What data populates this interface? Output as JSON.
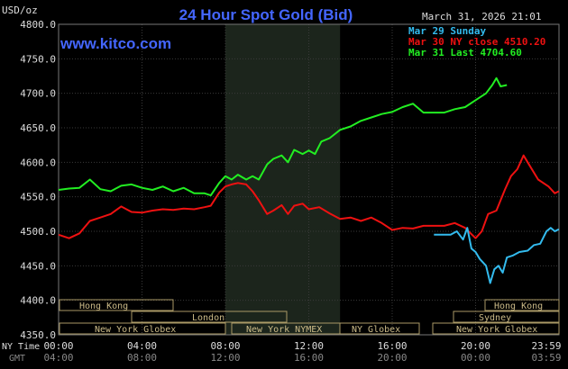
{
  "header": {
    "title": "24 Hour Spot Gold (Bid)",
    "units": "USD/oz",
    "datetime": "March 31, 2026 21:01",
    "website": "www.kitco.com"
  },
  "legend": [
    {
      "label": "Mar 29 Sunday",
      "color": "#33bbee"
    },
    {
      "label": "Mar 30 NY close 4510.20",
      "color": "#ee1111"
    },
    {
      "label": "Mar 31 Last 4704.60",
      "color": "#22ee22"
    }
  ],
  "time_rows": {
    "ny_label": "NY Time",
    "gmt_label": "GMT",
    "ny_ticks": [
      "00:00",
      "04:00",
      "08:00",
      "12:00",
      "16:00",
      "20:00",
      "23:59"
    ],
    "gmt_ticks": [
      "04:00",
      "08:00",
      "12:00",
      "16:00",
      "20:00",
      "00:00",
      "03:59"
    ]
  },
  "sessions": [
    {
      "label": "Hong Kong",
      "row": 0
    },
    {
      "label": "Hong Kong",
      "row": 0
    },
    {
      "label": "London",
      "row": 1
    },
    {
      "label": "Sydney",
      "row": 1
    },
    {
      "label": "New York Globex",
      "row": 2
    },
    {
      "label": "New York NYMEX",
      "row": 2
    },
    {
      "label": "NY Globex",
      "row": 2
    },
    {
      "label": "New York Globex",
      "row": 2
    }
  ],
  "chart_data": {
    "type": "line",
    "title": "24 Hour Spot Gold (Bid)",
    "ylabel": "USD/oz",
    "ylim": [
      4350,
      4800
    ],
    "yticks": [
      "4800.0",
      "4750.0",
      "4700.0",
      "4650.0",
      "4600.0",
      "4550.0",
      "4500.0",
      "4450.0",
      "4400.0",
      "4350.0"
    ],
    "xlim_hours": [
      0,
      24
    ],
    "shaded_hours": [
      8.0,
      13.5
    ],
    "grid": true,
    "legend_position": "top-right",
    "series": [
      {
        "name": "Mar 31 Last 4704.60",
        "color": "#22ee22",
        "points": [
          [
            0,
            4560
          ],
          [
            0.5,
            4562
          ],
          [
            1.0,
            4563
          ],
          [
            1.5,
            4575
          ],
          [
            2.0,
            4561
          ],
          [
            2.5,
            4558
          ],
          [
            3.0,
            4566
          ],
          [
            3.5,
            4568
          ],
          [
            4.0,
            4563
          ],
          [
            4.5,
            4560
          ],
          [
            5.0,
            4565
          ],
          [
            5.5,
            4558
          ],
          [
            6.0,
            4563
          ],
          [
            6.5,
            4555
          ],
          [
            7.0,
            4555
          ],
          [
            7.3,
            4552
          ],
          [
            7.7,
            4570
          ],
          [
            8.0,
            4580
          ],
          [
            8.3,
            4575
          ],
          [
            8.6,
            4582
          ],
          [
            9.0,
            4575
          ],
          [
            9.3,
            4580
          ],
          [
            9.6,
            4575
          ],
          [
            10.0,
            4597
          ],
          [
            10.3,
            4605
          ],
          [
            10.7,
            4610
          ],
          [
            11.0,
            4600
          ],
          [
            11.3,
            4618
          ],
          [
            11.7,
            4612
          ],
          [
            12.0,
            4617
          ],
          [
            12.3,
            4612
          ],
          [
            12.6,
            4630
          ],
          [
            13.0,
            4635
          ],
          [
            13.5,
            4647
          ],
          [
            14.0,
            4652
          ],
          [
            14.5,
            4660
          ],
          [
            15.0,
            4665
          ],
          [
            15.5,
            4670
          ],
          [
            16.0,
            4673
          ],
          [
            16.5,
            4680
          ],
          [
            17.0,
            4685
          ],
          [
            17.5,
            4672
          ],
          [
            18.0,
            4672
          ],
          [
            18.5,
            4672
          ],
          [
            19.0,
            4677
          ],
          [
            19.5,
            4680
          ],
          [
            20.0,
            4690
          ],
          [
            20.5,
            4700
          ],
          [
            20.8,
            4712
          ],
          [
            21.0,
            4722
          ],
          [
            21.2,
            4710
          ],
          [
            21.5,
            4712
          ]
        ]
      },
      {
        "name": "Mar 30 NY close 4510.20",
        "color": "#ee1111",
        "points": [
          [
            0,
            4495
          ],
          [
            0.5,
            4490
          ],
          [
            1.0,
            4497
          ],
          [
            1.5,
            4515
          ],
          [
            2.0,
            4520
          ],
          [
            2.5,
            4525
          ],
          [
            3.0,
            4536
          ],
          [
            3.5,
            4528
          ],
          [
            4.0,
            4527
          ],
          [
            4.5,
            4530
          ],
          [
            5.0,
            4532
          ],
          [
            5.5,
            4531
          ],
          [
            6.0,
            4533
          ],
          [
            6.5,
            4532
          ],
          [
            7.0,
            4535
          ],
          [
            7.3,
            4537
          ],
          [
            7.7,
            4556
          ],
          [
            8.0,
            4565
          ],
          [
            8.3,
            4568
          ],
          [
            8.6,
            4570
          ],
          [
            9.0,
            4568
          ],
          [
            9.3,
            4558
          ],
          [
            9.6,
            4545
          ],
          [
            10.0,
            4525
          ],
          [
            10.3,
            4530
          ],
          [
            10.7,
            4538
          ],
          [
            11.0,
            4525
          ],
          [
            11.3,
            4537
          ],
          [
            11.7,
            4540
          ],
          [
            12.0,
            4532
          ],
          [
            12.5,
            4535
          ],
          [
            13.0,
            4526
          ],
          [
            13.5,
            4518
          ],
          [
            14.0,
            4520
          ],
          [
            14.5,
            4515
          ],
          [
            15.0,
            4520
          ],
          [
            15.5,
            4512
          ],
          [
            16.0,
            4502
          ],
          [
            16.5,
            4505
          ],
          [
            17.0,
            4504
          ],
          [
            17.5,
            4508
          ],
          [
            18.0,
            4508
          ],
          [
            18.5,
            4508
          ],
          [
            19.0,
            4512
          ],
          [
            19.5,
            4505
          ],
          [
            20.0,
            4490
          ],
          [
            20.3,
            4500
          ],
          [
            20.6,
            4525
          ],
          [
            21.0,
            4530
          ],
          [
            21.4,
            4560
          ],
          [
            21.7,
            4580
          ],
          [
            22.0,
            4590
          ],
          [
            22.3,
            4610
          ],
          [
            22.6,
            4595
          ],
          [
            23.0,
            4575
          ],
          [
            23.5,
            4565
          ],
          [
            23.8,
            4555
          ],
          [
            23.99,
            4558
          ]
        ]
      },
      {
        "name": "Mar 29 Sunday",
        "color": "#33bbee",
        "points": [
          [
            18.0,
            4495
          ],
          [
            18.8,
            4495
          ],
          [
            19.1,
            4500
          ],
          [
            19.4,
            4488
          ],
          [
            19.6,
            4505
          ],
          [
            19.8,
            4475
          ],
          [
            20.0,
            4470
          ],
          [
            20.2,
            4460
          ],
          [
            20.5,
            4450
          ],
          [
            20.7,
            4425
          ],
          [
            20.9,
            4445
          ],
          [
            21.1,
            4450
          ],
          [
            21.3,
            4440
          ],
          [
            21.5,
            4462
          ],
          [
            21.8,
            4465
          ],
          [
            22.1,
            4470
          ],
          [
            22.5,
            4472
          ],
          [
            22.8,
            4480
          ],
          [
            23.1,
            4482
          ],
          [
            23.4,
            4500
          ],
          [
            23.6,
            4505
          ],
          [
            23.8,
            4500
          ],
          [
            23.99,
            4503
          ]
        ]
      }
    ]
  }
}
